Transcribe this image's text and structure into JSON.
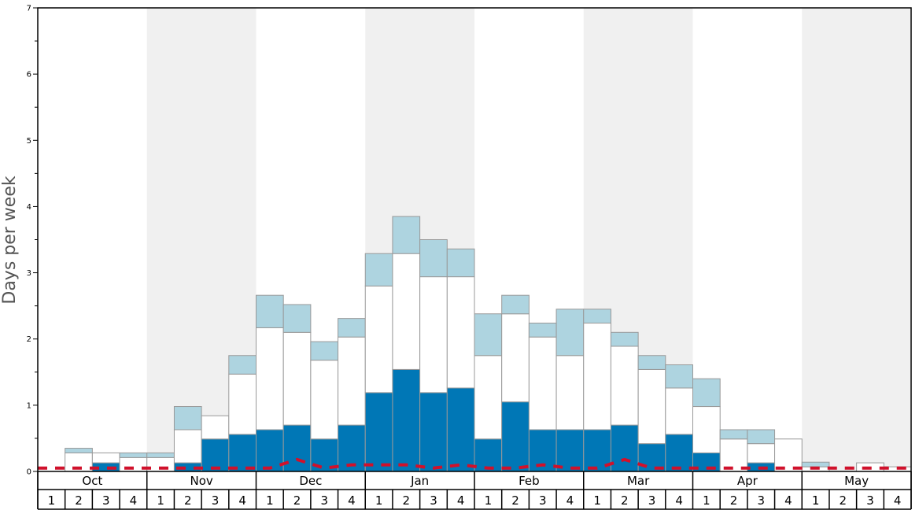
{
  "chart_data": {
    "type": "bar",
    "stacked": true,
    "ylabel": "Days per week",
    "ylim": [
      0,
      7
    ],
    "y_ticks": [
      "0",
      "1",
      "2",
      "3",
      "4",
      "5",
      "6",
      "7"
    ],
    "months": [
      "Oct",
      "Nov",
      "Dec",
      "Jan",
      "Feb",
      "Mar",
      "Apr",
      "May"
    ],
    "weeks": [
      "1",
      "2",
      "3",
      "4"
    ],
    "shade_months": [
      false,
      true,
      false,
      true,
      false,
      true,
      false,
      true
    ],
    "colors": {
      "dark": "#0077b6",
      "mid": "#ffffff",
      "light": "#aed4e0",
      "line": "#d0112b",
      "shade": "#f0f0f0",
      "bar_edge": "#999999"
    },
    "series": [
      {
        "key": "dark",
        "values": [
          0,
          0,
          0.13,
          0,
          0,
          0.13,
          0.49,
          0.56,
          0.63,
          0.7,
          0.49,
          0.7,
          1.19,
          1.54,
          1.19,
          1.26,
          0.49,
          1.05,
          0.63,
          0.63,
          0.63,
          0.7,
          0.42,
          0.56,
          0.28,
          0,
          0.13,
          0,
          0,
          0,
          0,
          0
        ]
      },
      {
        "key": "mid",
        "values": [
          0,
          0.28,
          0.15,
          0.21,
          0.21,
          0.5,
          0.35,
          0.91,
          1.54,
          1.4,
          1.19,
          1.33,
          1.61,
          1.75,
          1.75,
          1.68,
          1.26,
          1.33,
          1.4,
          1.12,
          1.61,
          1.19,
          1.12,
          0.7,
          0.7,
          0.49,
          0.29,
          0.49,
          0.07,
          0,
          0.13,
          0.07
        ]
      },
      {
        "key": "light",
        "values": [
          0,
          0.07,
          0,
          0.07,
          0.07,
          0.35,
          0,
          0.28,
          0.49,
          0.42,
          0.28,
          0.28,
          0.49,
          0.56,
          0.56,
          0.42,
          0.63,
          0.28,
          0.21,
          0.7,
          0.21,
          0.21,
          0.21,
          0.35,
          0.42,
          0.14,
          0.21,
          0,
          0.07,
          0,
          0,
          0
        ]
      }
    ],
    "line_values": [
      0.05,
      0.05,
      0.05,
      0.05,
      0.05,
      0.05,
      0.05,
      0.05,
      0.05,
      0.18,
      0.05,
      0.1,
      0.1,
      0.1,
      0.05,
      0.1,
      0.05,
      0.05,
      0.1,
      0.05,
      0.05,
      0.18,
      0.05,
      0.05,
      0.05,
      0.05,
      0.05,
      0.05,
      0.05,
      0.05,
      0.05,
      0.05
    ]
  }
}
